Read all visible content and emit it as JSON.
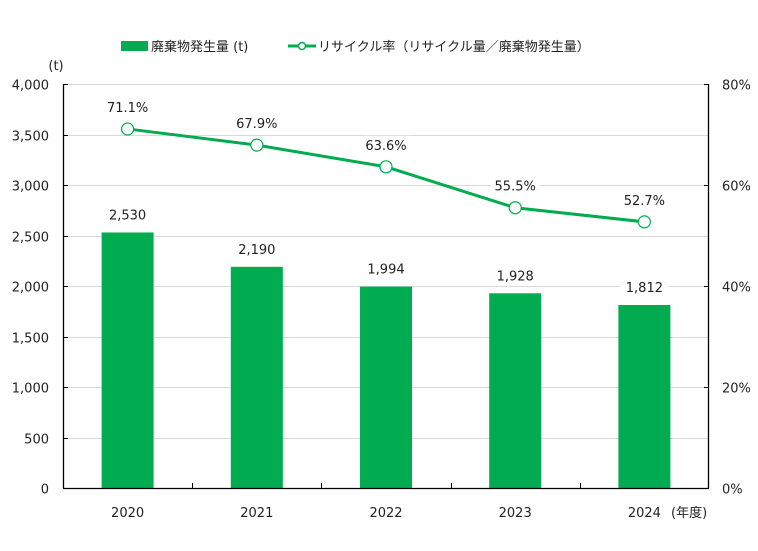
{
  "chart_data": {
    "type": "bar",
    "title": "",
    "categories": [
      "2020",
      "2021",
      "2022",
      "2023",
      "2024"
    ],
    "xlabel": "(年度)",
    "series": [
      {
        "name": "廃棄物発生量 (t)",
        "kind": "bar",
        "axis": "left",
        "color": "#00ac4f",
        "values": [
          2530,
          2190,
          1994,
          1928,
          1812
        ],
        "labels": [
          "2,530",
          "2,190",
          "1,994",
          "1,928",
          "1,812"
        ]
      },
      {
        "name": "リサイクル率（リサイクル量／廃棄物発生量）",
        "kind": "line",
        "axis": "right",
        "color": "#00ac4f",
        "marker": "open-circle",
        "values": [
          71.1,
          67.9,
          63.6,
          55.5,
          52.7
        ],
        "labels": [
          "71.1%",
          "67.9%",
          "63.6%",
          "55.5%",
          "52.7%"
        ]
      }
    ],
    "y_left": {
      "label": "(t)",
      "range": [
        0,
        4000
      ],
      "ticks": [
        0,
        500,
        1000,
        1500,
        2000,
        2500,
        3000,
        3500,
        4000
      ],
      "tick_labels": [
        "0",
        "500",
        "1,000",
        "1,500",
        "2,000",
        "2,500",
        "3,000",
        "3,500",
        "4,000"
      ]
    },
    "y_right": {
      "label": "",
      "range": [
        0,
        80
      ],
      "ticks": [
        0,
        20,
        40,
        60,
        80
      ],
      "tick_labels": [
        "0%",
        "20%",
        "40%",
        "60%",
        "80%"
      ]
    },
    "grid": true,
    "legend": {
      "position": "top"
    },
    "colors": {
      "grid": "#d9d9d9",
      "axis": "#000000",
      "bar": "#00ac4f",
      "line": "#00ac4f"
    }
  }
}
